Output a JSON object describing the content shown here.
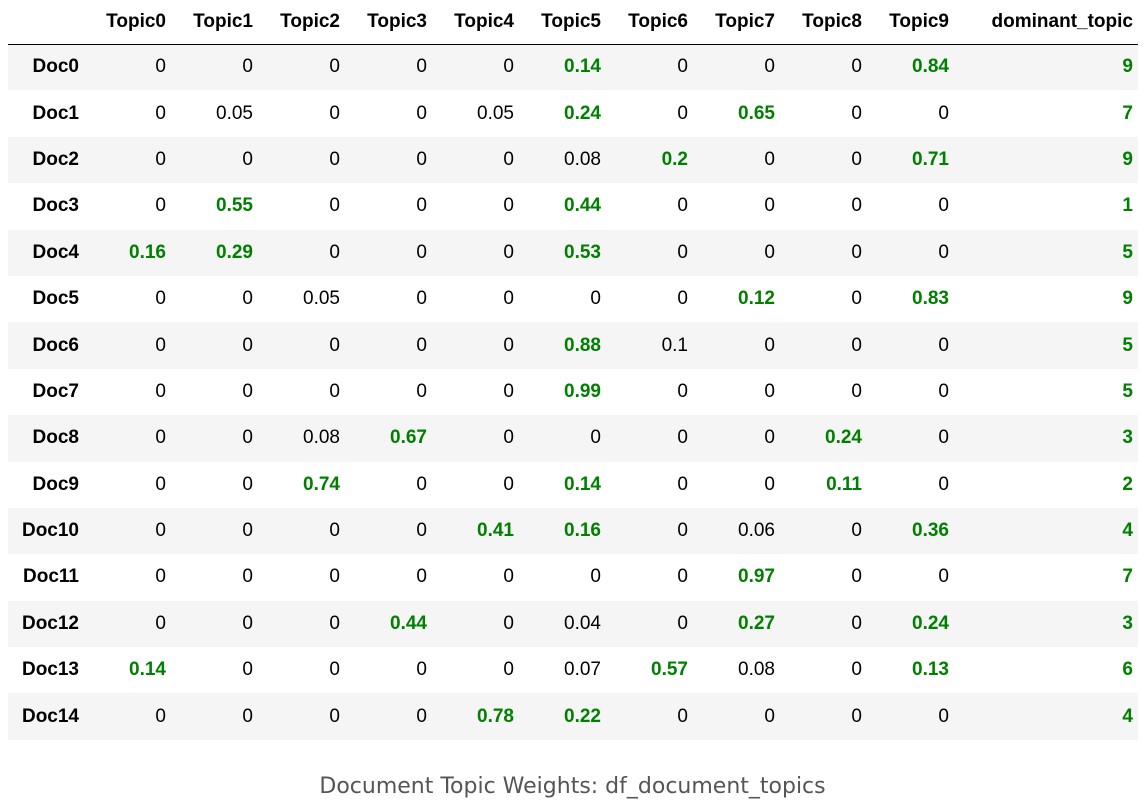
{
  "table": {
    "columns": [
      "",
      "Topic0",
      "Topic1",
      "Topic2",
      "Topic3",
      "Topic4",
      "Topic5",
      "Topic6",
      "Topic7",
      "Topic8",
      "Topic9",
      "dominant_topic"
    ],
    "rows": [
      {
        "label": "Doc0",
        "values": [
          "0",
          "0",
          "0",
          "0",
          "0",
          "0.14",
          "0",
          "0",
          "0",
          "0.84"
        ],
        "highlight": [
          5,
          9
        ],
        "dominant": "9"
      },
      {
        "label": "Doc1",
        "values": [
          "0",
          "0.05",
          "0",
          "0",
          "0.05",
          "0.24",
          "0",
          "0.65",
          "0",
          "0"
        ],
        "highlight": [
          5,
          7
        ],
        "dominant": "7"
      },
      {
        "label": "Doc2",
        "values": [
          "0",
          "0",
          "0",
          "0",
          "0",
          "0.08",
          "0.2",
          "0",
          "0",
          "0.71"
        ],
        "highlight": [
          6,
          9
        ],
        "dominant": "9"
      },
      {
        "label": "Doc3",
        "values": [
          "0",
          "0.55",
          "0",
          "0",
          "0",
          "0.44",
          "0",
          "0",
          "0",
          "0"
        ],
        "highlight": [
          1,
          5
        ],
        "dominant": "1"
      },
      {
        "label": "Doc4",
        "values": [
          "0.16",
          "0.29",
          "0",
          "0",
          "0",
          "0.53",
          "0",
          "0",
          "0",
          "0"
        ],
        "highlight": [
          0,
          1,
          5
        ],
        "dominant": "5"
      },
      {
        "label": "Doc5",
        "values": [
          "0",
          "0",
          "0.05",
          "0",
          "0",
          "0",
          "0",
          "0.12",
          "0",
          "0.83"
        ],
        "highlight": [
          7,
          9
        ],
        "dominant": "9"
      },
      {
        "label": "Doc6",
        "values": [
          "0",
          "0",
          "0",
          "0",
          "0",
          "0.88",
          "0.1",
          "0",
          "0",
          "0"
        ],
        "highlight": [
          5
        ],
        "dominant": "5"
      },
      {
        "label": "Doc7",
        "values": [
          "0",
          "0",
          "0",
          "0",
          "0",
          "0.99",
          "0",
          "0",
          "0",
          "0"
        ],
        "highlight": [
          5
        ],
        "dominant": "5"
      },
      {
        "label": "Doc8",
        "values": [
          "0",
          "0",
          "0.08",
          "0.67",
          "0",
          "0",
          "0",
          "0",
          "0.24",
          "0"
        ],
        "highlight": [
          3,
          8
        ],
        "dominant": "3"
      },
      {
        "label": "Doc9",
        "values": [
          "0",
          "0",
          "0.74",
          "0",
          "0",
          "0.14",
          "0",
          "0",
          "0.11",
          "0"
        ],
        "highlight": [
          2,
          5,
          8
        ],
        "dominant": "2"
      },
      {
        "label": "Doc10",
        "values": [
          "0",
          "0",
          "0",
          "0",
          "0.41",
          "0.16",
          "0",
          "0.06",
          "0",
          "0.36"
        ],
        "highlight": [
          4,
          5,
          9
        ],
        "dominant": "4"
      },
      {
        "label": "Doc11",
        "values": [
          "0",
          "0",
          "0",
          "0",
          "0",
          "0",
          "0",
          "0.97",
          "0",
          "0"
        ],
        "highlight": [
          7
        ],
        "dominant": "7"
      },
      {
        "label": "Doc12",
        "values": [
          "0",
          "0",
          "0",
          "0.44",
          "0",
          "0.04",
          "0",
          "0.27",
          "0",
          "0.24"
        ],
        "highlight": [
          3,
          7,
          9
        ],
        "dominant": "3"
      },
      {
        "label": "Doc13",
        "values": [
          "0.14",
          "0",
          "0",
          "0",
          "0",
          "0.07",
          "0.57",
          "0.08",
          "0",
          "0.13"
        ],
        "highlight": [
          0,
          6,
          9
        ],
        "dominant": "6"
      },
      {
        "label": "Doc14",
        "values": [
          "0",
          "0",
          "0",
          "0",
          "0.78",
          "0.22",
          "0",
          "0",
          "0",
          "0"
        ],
        "highlight": [
          4,
          5
        ],
        "dominant": "4"
      }
    ]
  },
  "colors": {
    "highlight": "#008000",
    "stripe": "#f5f5f5"
  },
  "caption": "Document Topic Weights: df_document_topics"
}
